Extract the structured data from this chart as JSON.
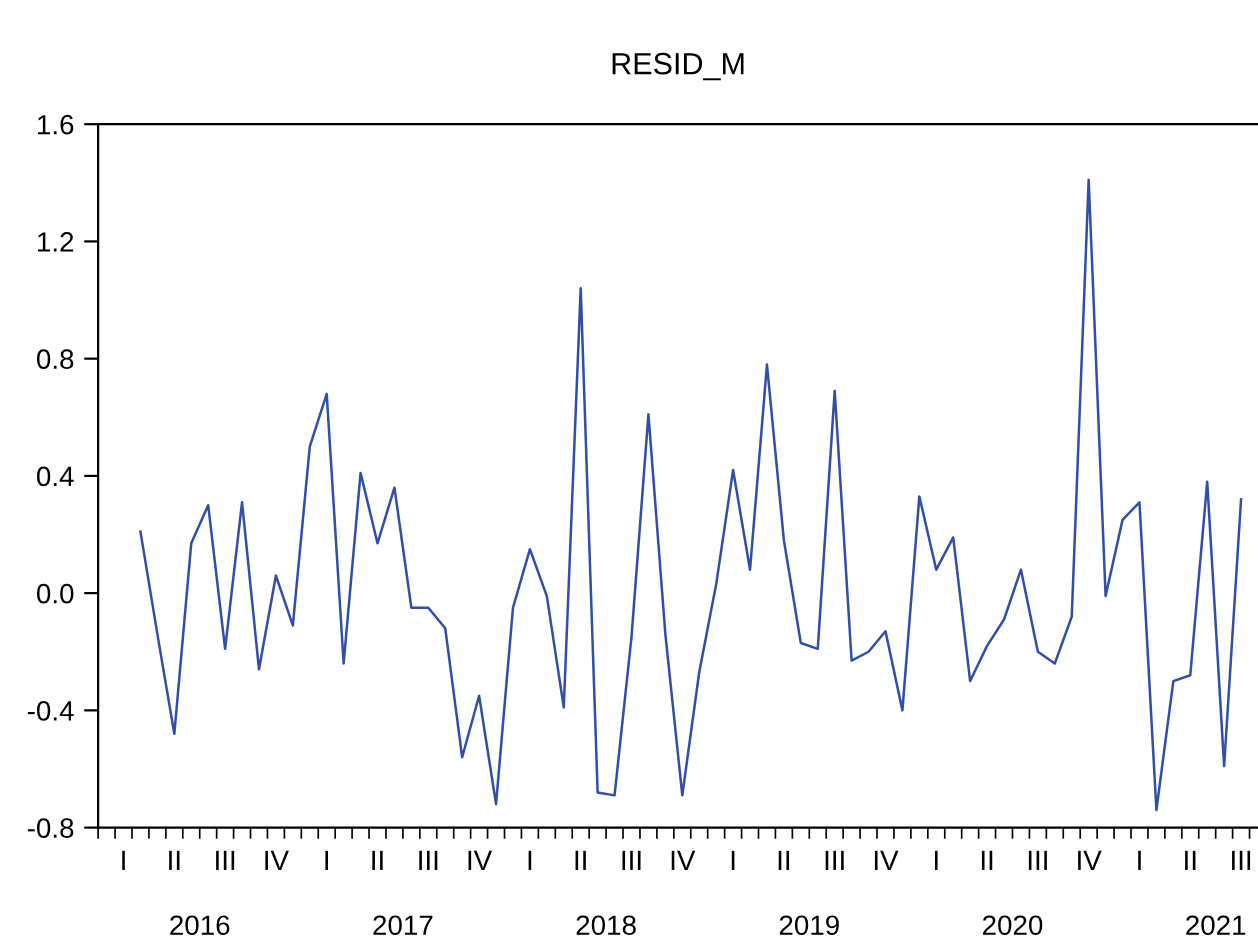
{
  "chart_data": {
    "type": "line",
    "title": "RESID_M",
    "categories": [
      null,
      "I",
      null,
      null,
      "II",
      null,
      null,
      "III",
      null,
      null,
      "IV",
      null,
      null,
      "I",
      null,
      null,
      "II",
      null,
      null,
      "III",
      null,
      null,
      "IV",
      null,
      null,
      "I",
      null,
      null,
      "II",
      null,
      null,
      "III",
      null,
      null,
      "IV",
      null,
      null,
      "I",
      null,
      null,
      "II",
      null,
      null,
      "III",
      null,
      null,
      "IV",
      null,
      null,
      "I",
      null,
      null,
      "II",
      null,
      null,
      "III",
      null,
      null,
      "IV",
      null,
      null,
      "I",
      null,
      null,
      "II",
      null,
      null,
      "III",
      null
    ],
    "series": [
      {
        "color": "#2f4fa8",
        "values": [
          null,
          null,
          0.21,
          -0.14,
          -0.48,
          0.17,
          0.3,
          -0.19,
          0.31,
          -0.26,
          0.06,
          -0.11,
          0.5,
          0.68,
          -0.24,
          0.41,
          0.17,
          0.36,
          -0.05,
          -0.05,
          -0.12,
          -0.56,
          -0.35,
          -0.72,
          -0.05,
          0.15,
          -0.01,
          -0.39,
          1.04,
          -0.68,
          -0.69,
          -0.15,
          0.61,
          -0.14,
          -0.69,
          -0.27,
          0.03,
          0.42,
          0.08,
          0.78,
          0.18,
          -0.17,
          -0.19,
          0.69,
          -0.23,
          -0.2,
          -0.13,
          -0.4,
          0.33,
          0.08,
          0.19,
          -0.3,
          -0.18,
          -0.09,
          0.08,
          -0.2,
          -0.24,
          -0.08,
          1.41,
          -0.01,
          0.25,
          0.31,
          -0.74,
          -0.3,
          -0.28,
          0.38,
          -0.59,
          0.32,
          null
        ]
      }
    ],
    "annotations": [
      "2016",
      "2017",
      "2018",
      "2019",
      "2020",
      "2021"
    ],
    "ylim": [
      -0.8,
      1.6
    ],
    "yticks": [
      {
        "value": -0.8,
        "label": "-0.8"
      },
      {
        "value": -0.4,
        "label": "-0.4"
      },
      {
        "value": 0.0,
        "label": "0.0"
      },
      {
        "value": 0.4,
        "label": "0.4"
      },
      {
        "value": 0.8,
        "label": "0.8"
      },
      {
        "value": 1.2,
        "label": "1.2"
      },
      {
        "value": 1.6,
        "label": "1.6"
      }
    ],
    "grid": false
  }
}
